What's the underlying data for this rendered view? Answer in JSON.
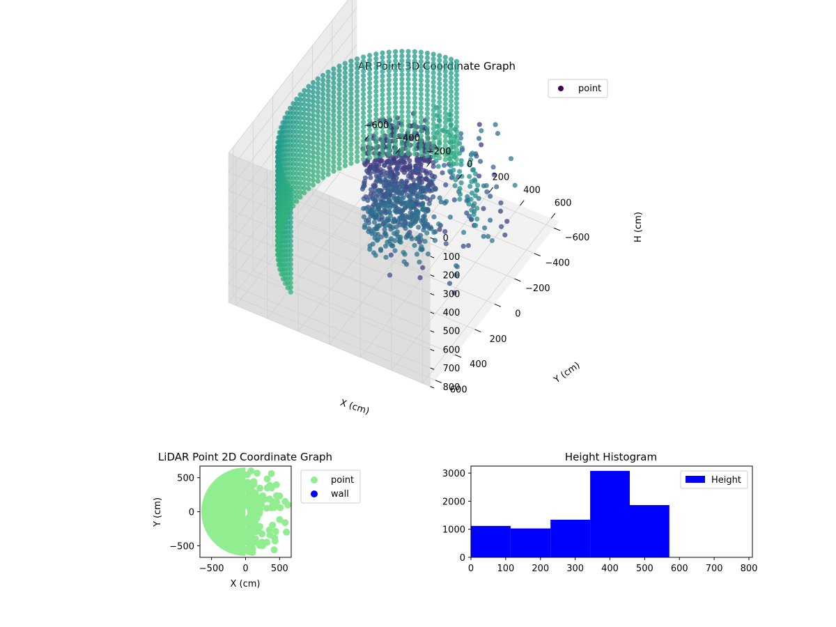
{
  "colors": {
    "point_3d_legend": "#440154",
    "point_2d": "#90ee90",
    "wall_2d": "#0000ff",
    "histogram_bar": "#0000ff",
    "pane_left": "#ebebeb",
    "pane_right": "#dedede",
    "pane_floor": "#f2f2f2",
    "grid": "#d0d0d0"
  },
  "chart_data": [
    {
      "type": "scatter",
      "projection": "3d",
      "colormap": "viridis",
      "title": "LiDAR Point 3D Coordinate Graph",
      "xlabel": "X (cm)",
      "ylabel": "Y (cm)",
      "zlabel": "H (cm)",
      "xlim": [
        -650,
        650
      ],
      "ylim": [
        -650,
        650
      ],
      "zlim": [
        800,
        0
      ],
      "xticks": [
        "−600",
        "−400",
        "−200",
        "0",
        "200",
        "400",
        "600"
      ],
      "yticks": [
        "−600",
        "−400",
        "−200",
        "0",
        "200",
        "400",
        "600"
      ],
      "zticks": [
        "0",
        "100",
        "200",
        "300",
        "400",
        "500",
        "600",
        "700",
        "800"
      ],
      "legend": {
        "position": "upper-right",
        "entries": [
          "point"
        ]
      },
      "grid": true,
      "description_of_data": "ring of points at radius ~630 cm over angles ~120°–270°, heights 150–700 cm; dense cluster near origin; scattered points toward +X"
    },
    {
      "type": "scatter",
      "title": "LiDAR Point 2D Coordinate Graph",
      "xlabel": "X (cm)",
      "ylabel": "Y (cm)",
      "xlim": [
        -650,
        650
      ],
      "ylim": [
        -650,
        650
      ],
      "xticks": [
        "−500",
        "0",
        "500"
      ],
      "yticks": [
        "500",
        "0",
        "−500"
      ],
      "legend": {
        "position": "outside-right",
        "entries": [
          "point",
          "wall"
        ]
      },
      "series": [
        {
          "name": "point",
          "description_of_data": "filled half disk x in [-630, 0] of radius ~630 cm plus points to x ~620"
        },
        {
          "name": "wall",
          "values": []
        }
      ]
    },
    {
      "type": "bar",
      "subtype": "histogram",
      "title": "Height Histogram",
      "xlabel": "",
      "ylabel": "",
      "bin_edges": [
        0,
        114,
        229,
        343,
        457,
        571
      ],
      "values": [
        1120,
        1030,
        1340,
        3080,
        1860
      ],
      "xlim": [
        0,
        810
      ],
      "ylim": [
        0,
        3250
      ],
      "xticks": [
        "0",
        "100",
        "200",
        "300",
        "400",
        "500",
        "600",
        "700",
        "800"
      ],
      "yticks": [
        "0",
        "1000",
        "2000",
        "3000"
      ],
      "series": [
        {
          "name": "Height",
          "values": [
            1120,
            1030,
            1340,
            3080,
            1860
          ]
        }
      ],
      "legend": {
        "position": "upper-right",
        "entries": [
          "Height"
        ]
      }
    }
  ]
}
